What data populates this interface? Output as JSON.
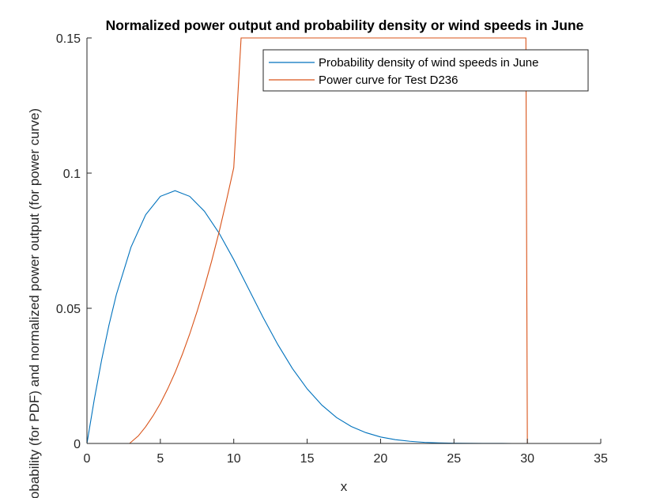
{
  "chart_data": {
    "type": "line",
    "title": "Normalized power output and probability density or wind speeds in June",
    "xlabel": "x",
    "ylabel": "Probability (for PDF) and normalized power output (for power curve)",
    "xlim": [
      0,
      35
    ],
    "ylim": [
      0,
      0.15
    ],
    "xticks": [
      "0",
      "5",
      "10",
      "15",
      "20",
      "25",
      "30",
      "35"
    ],
    "yticks": [
      "0",
      "0.05",
      "0.1",
      "0.15"
    ],
    "grid": false,
    "legend_position": "top-right",
    "series": [
      {
        "name": "Probability density of wind speeds in June",
        "color": "#0072BD",
        "x": [
          0,
          0.5,
          1,
          1.5,
          2,
          3,
          4,
          5,
          6,
          7,
          8,
          9,
          10,
          11,
          12,
          13,
          14,
          15,
          16,
          17,
          18,
          19,
          20,
          21,
          22,
          23,
          24,
          25,
          26,
          27,
          28,
          29,
          30,
          35
        ],
        "y": [
          0,
          0.0163,
          0.0309,
          0.0438,
          0.055,
          0.0726,
          0.0846,
          0.0914,
          0.0935,
          0.0914,
          0.0859,
          0.0778,
          0.068,
          0.0573,
          0.0466,
          0.0366,
          0.0277,
          0.0202,
          0.0142,
          0.0096,
          0.0063,
          0.004,
          0.0024,
          0.0014,
          0.0008,
          0.0004,
          0.0002,
          0.0001,
          5e-05,
          2e-05,
          1e-05,
          0,
          0,
          0
        ]
      },
      {
        "name": "Power curve for Test D236",
        "color": "#D95319",
        "x": [
          0,
          2.9,
          3.5,
          4,
          4.5,
          5,
          5.5,
          6,
          6.5,
          7,
          7.5,
          8,
          8.5,
          9,
          9.5,
          10,
          10.5,
          29.9,
          30,
          35
        ],
        "y": [
          0,
          0,
          0.0028,
          0.0062,
          0.0102,
          0.0148,
          0.0202,
          0.0262,
          0.033,
          0.0405,
          0.0488,
          0.0578,
          0.0676,
          0.0782,
          0.0898,
          0.102,
          0.15,
          0.15,
          0,
          0
        ]
      }
    ]
  }
}
